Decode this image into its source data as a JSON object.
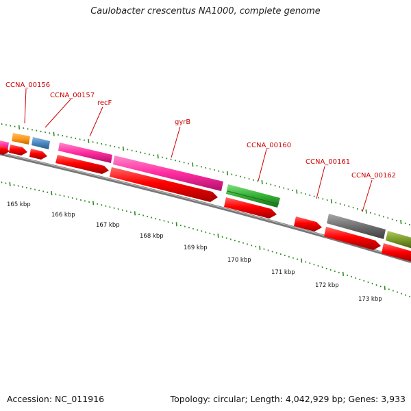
{
  "title": "Caulobacter crescentus NA1000, complete genome",
  "footer": {
    "accession": "Accession: NC_011916",
    "stats": "Topology: circular; Length: 4,042,929 bp; Genes: 3,933"
  },
  "gene_labels": [
    {
      "name": "CCNA_00156"
    },
    {
      "name": "CCNA_00157"
    },
    {
      "name": "recF"
    },
    {
      "name": "gyrB"
    },
    {
      "name": "CCNA_00160"
    },
    {
      "name": "CCNA_00161"
    },
    {
      "name": "CCNA_00162"
    }
  ],
  "kbp_ticks": [
    "165 kbp",
    "166 kbp",
    "167 kbp",
    "168 kbp",
    "169 kbp",
    "170 kbp",
    "171 kbp",
    "172 kbp",
    "173 kbp"
  ],
  "colors": {
    "label_red": "#cc0000",
    "cds_red": "#ff0000",
    "tick_green": "#2e8b22",
    "backbone": "#888888",
    "feature_magenta": "#ff2ca0",
    "feature_orange": "#ff9a1a",
    "feature_blue": "#4a88c0",
    "feature_green": "#34b034",
    "feature_grey": "#6e6e6e",
    "feature_olive": "#7a9a2a"
  }
}
